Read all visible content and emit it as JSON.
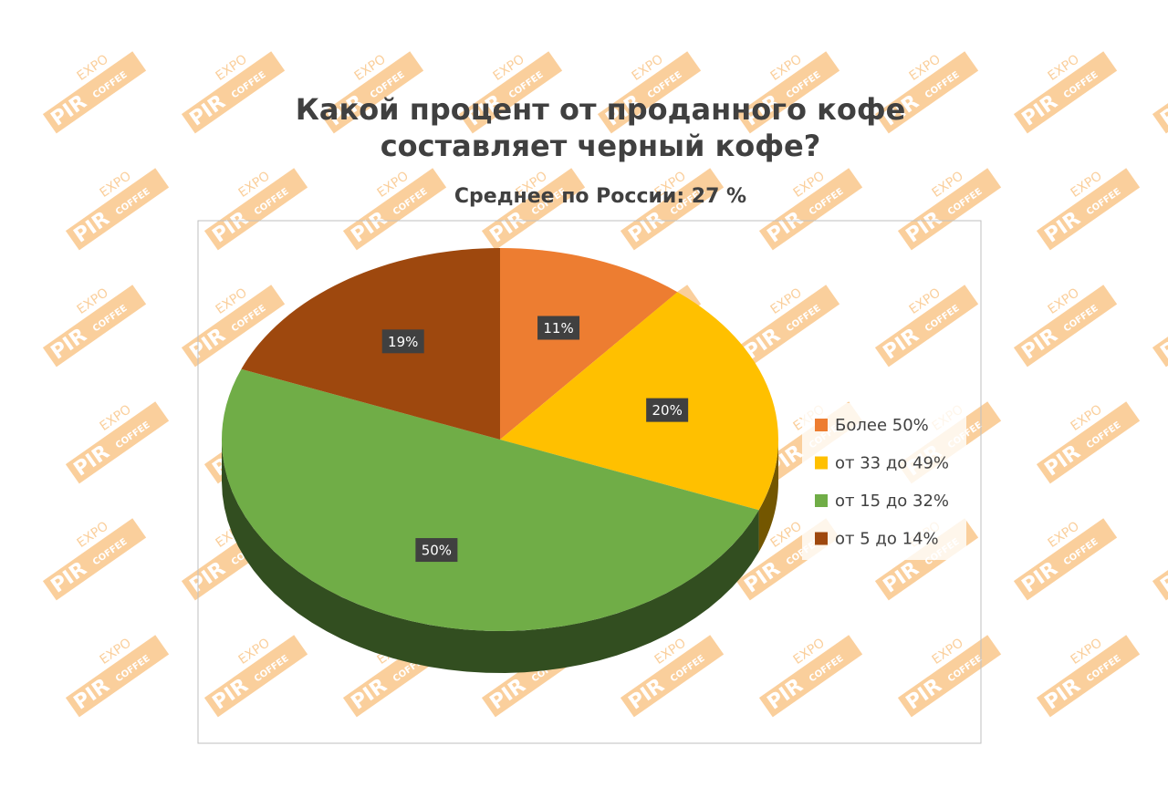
{
  "chart_data": {
    "type": "pie",
    "title": [
      "Какой процент от проданного кофе",
      "составляет черный кофе?"
    ],
    "subtitle": "Среднее по России: 27 %",
    "categories": [
      "Более 50%",
      "от 33 до 49%",
      "от 15 до 32%",
      "от 5 до 14%"
    ],
    "values": [
      11,
      20,
      50,
      19
    ],
    "value_labels": [
      "11%",
      "20%",
      "50%",
      "19%"
    ],
    "colors": [
      "#ed7d31",
      "#ffc000",
      "#70ad47",
      "#9e480e"
    ],
    "legend": "right"
  },
  "watermark": {
    "brand": "PIR",
    "word": "EXPO",
    "sub": "COFFEE"
  }
}
